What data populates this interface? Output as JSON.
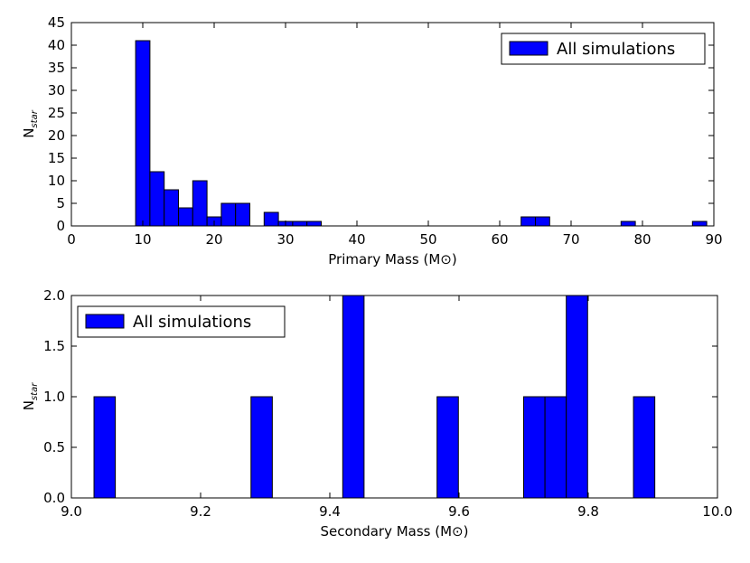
{
  "chart_data": [
    {
      "type": "bar",
      "name": "primary",
      "xlabel": "Primary Mass (M⊙)",
      "ylabel": "N",
      "ylabel_sub": "star",
      "xlim": [
        0,
        90
      ],
      "ylim": [
        0,
        45
      ],
      "xticks": [
        0,
        10,
        20,
        30,
        40,
        50,
        60,
        70,
        80,
        90
      ],
      "yticks": [
        0,
        5,
        10,
        15,
        20,
        25,
        30,
        35,
        40,
        45
      ],
      "xtick_labels": [
        "0",
        "10",
        "20",
        "30",
        "40",
        "50",
        "60",
        "70",
        "80",
        "90"
      ],
      "ytick_labels": [
        "0",
        "5",
        "10",
        "15",
        "20",
        "25",
        "30",
        "35",
        "40",
        "45"
      ],
      "legend": "All simulations",
      "legend_position": "top-right",
      "bar_color": "#0000ff",
      "bins": [
        {
          "x0": 9.0,
          "x1": 11.0,
          "value": 41
        },
        {
          "x0": 11.0,
          "x1": 13.0,
          "value": 12
        },
        {
          "x0": 13.0,
          "x1": 15.0,
          "value": 8
        },
        {
          "x0": 15.0,
          "x1": 17.0,
          "value": 4
        },
        {
          "x0": 17.0,
          "x1": 19.0,
          "value": 10
        },
        {
          "x0": 19.0,
          "x1": 21.0,
          "value": 2
        },
        {
          "x0": 21.0,
          "x1": 23.0,
          "value": 5
        },
        {
          "x0": 23.0,
          "x1": 25.0,
          "value": 5
        },
        {
          "x0": 25.0,
          "x1": 27.0,
          "value": 0
        },
        {
          "x0": 27.0,
          "x1": 29.0,
          "value": 3
        },
        {
          "x0": 29.0,
          "x1": 31.0,
          "value": 1
        },
        {
          "x0": 31.0,
          "x1": 33.0,
          "value": 1
        },
        {
          "x0": 33.0,
          "x1": 35.0,
          "value": 1
        },
        {
          "x0": 35.0,
          "x1": 37.0,
          "value": 0
        },
        {
          "x0": 37.0,
          "x1": 39.0,
          "value": 0
        },
        {
          "x0": 39.0,
          "x1": 41.0,
          "value": 0
        },
        {
          "x0": 41.0,
          "x1": 43.0,
          "value": 0
        },
        {
          "x0": 43.0,
          "x1": 45.0,
          "value": 0
        },
        {
          "x0": 45.0,
          "x1": 47.0,
          "value": 0
        },
        {
          "x0": 47.0,
          "x1": 49.0,
          "value": 0
        },
        {
          "x0": 49.0,
          "x1": 51.0,
          "value": 0
        },
        {
          "x0": 51.0,
          "x1": 53.0,
          "value": 0
        },
        {
          "x0": 53.0,
          "x1": 55.0,
          "value": 0
        },
        {
          "x0": 55.0,
          "x1": 57.0,
          "value": 0
        },
        {
          "x0": 57.0,
          "x1": 59.0,
          "value": 0
        },
        {
          "x0": 59.0,
          "x1": 61.0,
          "value": 0
        },
        {
          "x0": 61.0,
          "x1": 63.0,
          "value": 0
        },
        {
          "x0": 63.0,
          "x1": 65.0,
          "value": 2
        },
        {
          "x0": 65.0,
          "x1": 67.0,
          "value": 2
        },
        {
          "x0": 67.0,
          "x1": 69.0,
          "value": 0
        },
        {
          "x0": 69.0,
          "x1": 71.0,
          "value": 0
        },
        {
          "x0": 71.0,
          "x1": 73.0,
          "value": 0
        },
        {
          "x0": 73.0,
          "x1": 75.0,
          "value": 0
        },
        {
          "x0": 75.0,
          "x1": 77.0,
          "value": 0
        },
        {
          "x0": 77.0,
          "x1": 79.0,
          "value": 1
        },
        {
          "x0": 79.0,
          "x1": 81.0,
          "value": 0
        },
        {
          "x0": 81.0,
          "x1": 83.0,
          "value": 0
        },
        {
          "x0": 83.0,
          "x1": 85.0,
          "value": 0
        },
        {
          "x0": 85.0,
          "x1": 87.0,
          "value": 0
        },
        {
          "x0": 87.0,
          "x1": 89.0,
          "value": 1
        }
      ]
    },
    {
      "type": "bar",
      "name": "secondary",
      "xlabel": "Secondary Mass (M⊙)",
      "ylabel": "N",
      "ylabel_sub": "star",
      "xlim": [
        9.0,
        10.0
      ],
      "ylim": [
        0.0,
        2.0
      ],
      "xticks": [
        9.0,
        9.2,
        9.4,
        9.6,
        9.8,
        10.0
      ],
      "yticks": [
        0.0,
        0.5,
        1.0,
        1.5,
        2.0
      ],
      "xtick_labels": [
        "9.0",
        "9.2",
        "9.4",
        "9.6",
        "9.8",
        "10.0"
      ],
      "ytick_labels": [
        "0.0",
        "0.5",
        "1.0",
        "1.5",
        "2.0"
      ],
      "legend": "All simulations",
      "legend_position": "top-left",
      "bar_color": "#0000ff",
      "bins": [
        {
          "x0": 9.035,
          "x1": 9.068,
          "value": 1
        },
        {
          "x0": 9.278,
          "x1": 9.311,
          "value": 1
        },
        {
          "x0": 9.42,
          "x1": 9.453,
          "value": 2
        },
        {
          "x0": 9.566,
          "x1": 9.599,
          "value": 1
        },
        {
          "x0": 9.7,
          "x1": 9.733,
          "value": 1
        },
        {
          "x0": 9.733,
          "x1": 9.766,
          "value": 1
        },
        {
          "x0": 9.766,
          "x1": 9.799,
          "value": 2
        },
        {
          "x0": 9.87,
          "x1": 9.903,
          "value": 1
        }
      ]
    }
  ]
}
